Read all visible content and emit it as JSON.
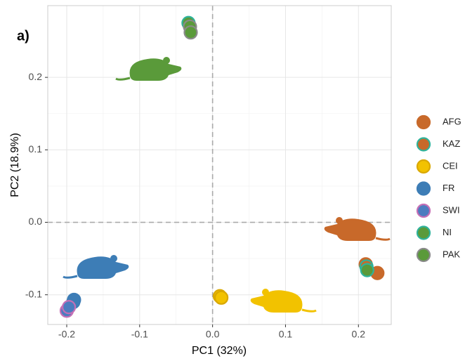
{
  "chart_data": {
    "type": "scatter",
    "annotation": "a)",
    "x_label": "PC1 (32%)",
    "y_label": "PC2 (18.9%)",
    "xlim": [
      -0.226,
      0.245
    ],
    "ylim": [
      -0.141,
      0.299
    ],
    "xticks": [
      -0.2,
      -0.1,
      {
        "value": 0,
        "label": "0.0"
      },
      0.1,
      0.2
    ],
    "yticks": [
      -0.1,
      {
        "value": 0,
        "label": "0.0"
      },
      0.1,
      0.2
    ],
    "grid": true,
    "legend": "right",
    "series": [
      {
        "name": "AFG",
        "color": "#c8692a",
        "edgecolor": "#c8692a",
        "x": [
          0.21,
          0.226
        ],
        "y": [
          -0.058,
          -0.07
        ]
      },
      {
        "name": "KAZ",
        "color": "#c8692a",
        "edgecolor": "#2fb39b",
        "x": [
          0.211
        ],
        "y": [
          -0.061
        ]
      },
      {
        "name": "CEI",
        "color": "#f2c200",
        "edgecolor": "#d9a800",
        "x": [
          0.01,
          0.012
        ],
        "y": [
          -0.102,
          -0.104
        ]
      },
      {
        "name": "FR",
        "color": "#3d7db6",
        "edgecolor": "#3d7db6",
        "x": [
          -0.19,
          -0.191
        ],
        "y": [
          -0.107,
          -0.11
        ]
      },
      {
        "name": "SWI",
        "color": "#4c7cbf",
        "edgecolor": "#c56fb6",
        "x": [
          -0.2,
          -0.197
        ],
        "y": [
          -0.122,
          -0.117
        ]
      },
      {
        "name": "NI",
        "color": "#5a9a3a",
        "edgecolor": "#2fb39b",
        "x": [
          0.212,
          -0.033
        ],
        "y": [
          -0.066,
          0.275
        ]
      },
      {
        "name": "PAK",
        "color": "#5a9a3a",
        "edgecolor": "#8a8a8a",
        "x": [
          -0.031,
          -0.03
        ],
        "y": [
          0.27,
          0.262
        ]
      }
    ]
  }
}
